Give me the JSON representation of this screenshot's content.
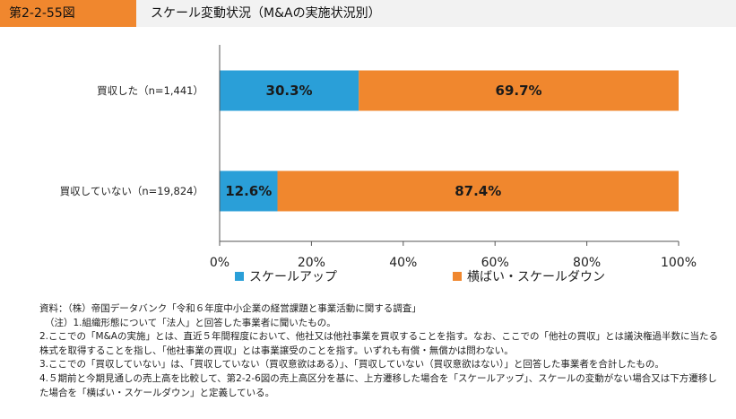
{
  "header": {
    "figure_number": "第2-2-55図",
    "title": "スケール変動状況（M&Aの実施状況別）"
  },
  "colors": {
    "scale_up": "#2a9fd8",
    "flat_down": "#f0872e",
    "header_accent": "#f0872e",
    "header_bg": "#f2f2f2",
    "axis": "#555555"
  },
  "chart_data": {
    "type": "bar",
    "orientation": "horizontal",
    "stacked": true,
    "categories": [
      "買収した（n=1,441）",
      "買収していない（n=19,824）"
    ],
    "series": [
      {
        "name": "スケールアップ",
        "values": [
          30.3,
          12.6
        ],
        "color": "#2a9fd8"
      },
      {
        "name": "横ばい・スケールダウン",
        "values": [
          69.7,
          87.4
        ],
        "color": "#f0872e"
      }
    ],
    "data_labels": [
      [
        "30.3%",
        "69.7%"
      ],
      [
        "12.6%",
        "87.4%"
      ]
    ],
    "xlim": [
      0,
      100
    ],
    "x_ticks": [
      0,
      20,
      40,
      60,
      80,
      100
    ],
    "x_tick_labels": [
      "0%",
      "20%",
      "40%",
      "60%",
      "80%",
      "100%"
    ],
    "grid": false,
    "legend_position": "bottom"
  },
  "notes": [
    "資料：（株）帝国データバンク「令和６年度中小企業の経営課題と事業活動に関する調査」",
    "（注）1.組織形態について「法人」と回答した事業者に聞いたもの。",
    "2.ここでの「M&Aの実施」とは、直近５年間程度において、他社又は他社事業を買収することを指す。なお、ここでの「他社の買収」とは議決権過半数に当たる株式を取得することを指し、「他社事業の買収」とは事業譲受のことを指す。いずれも有償・無償かは問わない。",
    "3.ここでの「買収していない」は、「買収していない（買収意欲はある）」、「買収していない（買収意欲はない）」と回答した事業者を合計したもの。",
    "4.５期前と今期見通しの売上高を比較して、第2-2-6図の売上高区分を基に、上方遷移した場合を「スケールアップ」、スケールの変動がない場合又は下方遷移した場合を「横ばい・スケールダウン」と定義している。"
  ]
}
